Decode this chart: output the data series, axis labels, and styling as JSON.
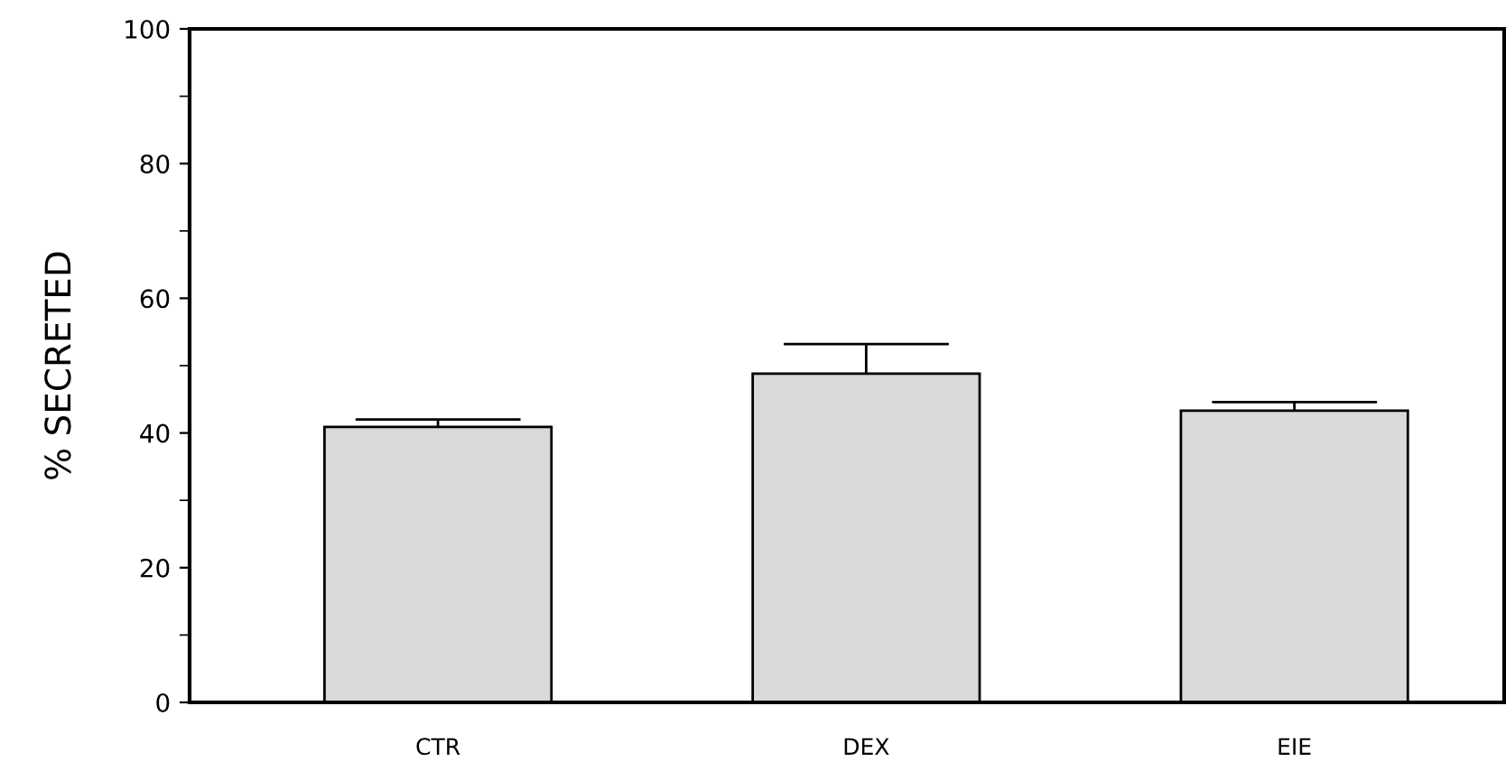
{
  "chart_data": {
    "type": "bar",
    "ylabel": "% SECRETED",
    "categories": [
      "CTR",
      "DEX",
      "EIE"
    ],
    "values": [
      40.9,
      48.8,
      43.3
    ],
    "errors": [
      1.1,
      4.4,
      1.3
    ],
    "color": "#d9d9d9",
    "ylim": [
      0,
      100
    ],
    "yticks": [
      0,
      20,
      40,
      60,
      80,
      100
    ],
    "grid": false
  }
}
